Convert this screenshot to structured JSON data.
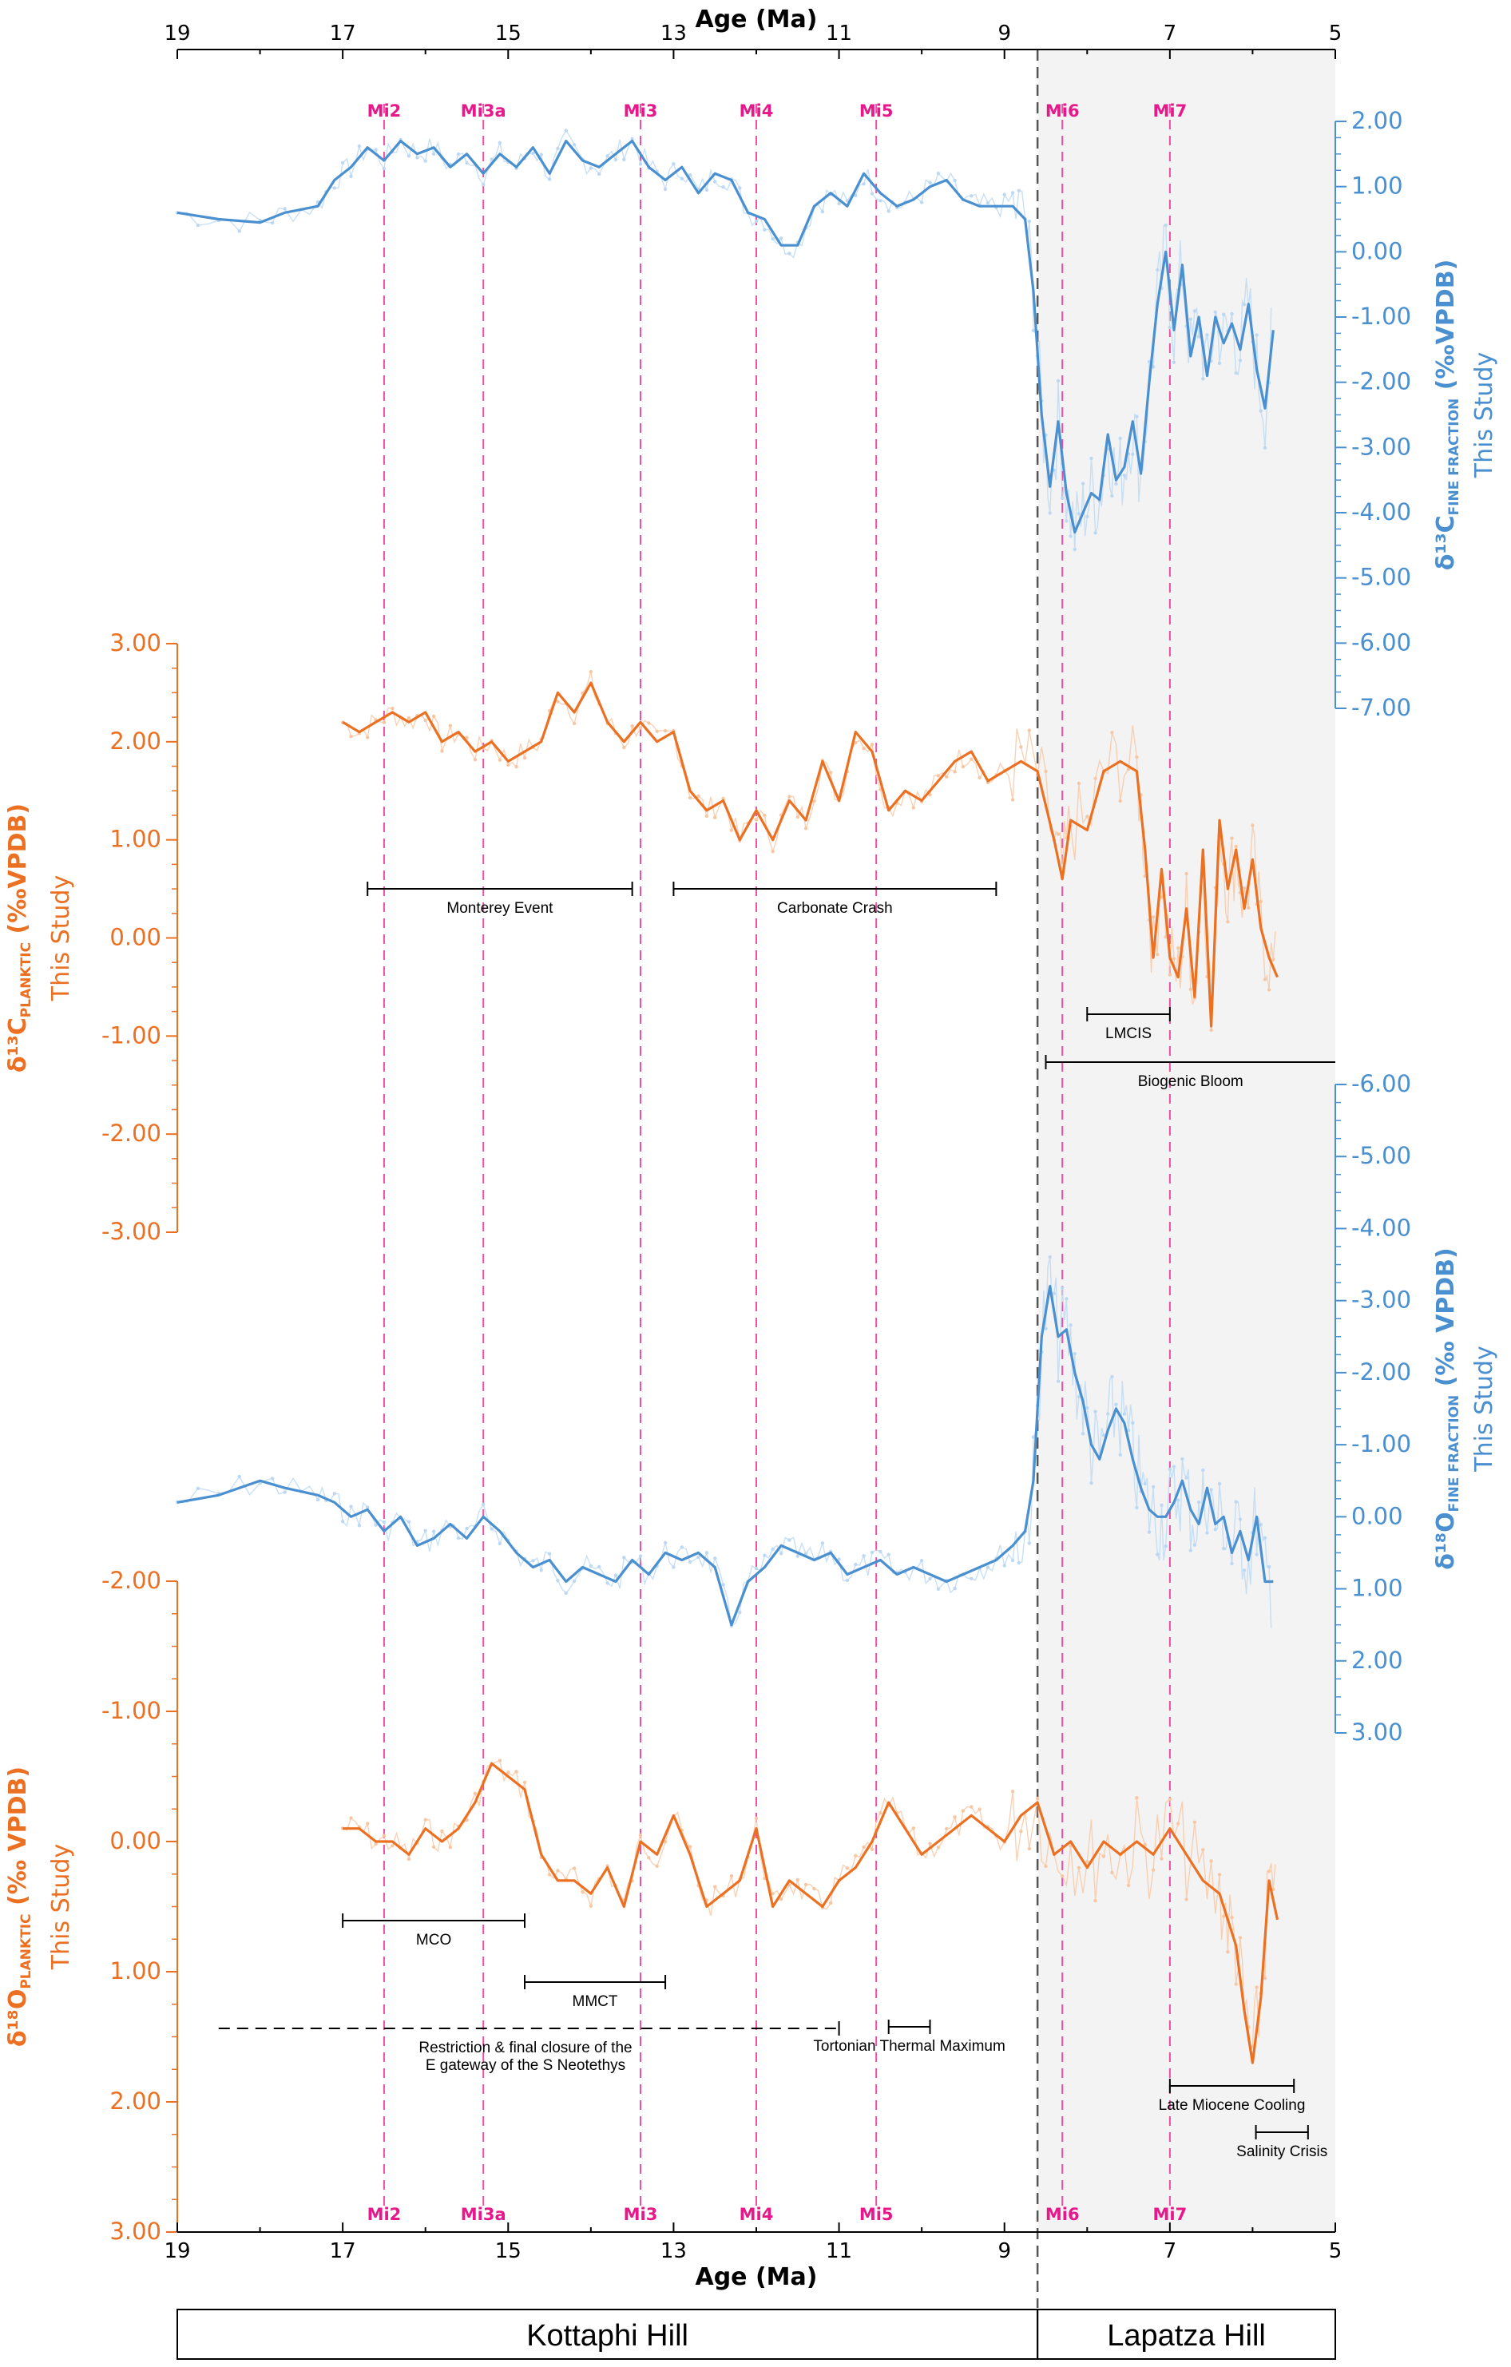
{
  "chart_data": {
    "type": "line",
    "shared_x": {
      "label": "Age (Ma)",
      "lim": [
        19,
        5
      ],
      "ticks": [
        "19",
        "17",
        "15",
        "13",
        "11",
        "9",
        "7",
        "5"
      ],
      "tick_values": [
        19,
        17,
        15,
        13,
        11,
        9,
        7,
        5
      ]
    },
    "boundary_age": 8.6,
    "shaded_region": [
      8.6,
      5
    ],
    "mi_events": [
      {
        "name": "Mi2",
        "age": 16.5
      },
      {
        "name": "Mi3a",
        "age": 15.3
      },
      {
        "name": "Mi3",
        "age": 13.4
      },
      {
        "name": "Mi4",
        "age": 12.0
      },
      {
        "name": "Mi5",
        "age": 10.55
      },
      {
        "name": "Mi6",
        "age": 8.3
      },
      {
        "name": "Mi7",
        "age": 7.0
      }
    ],
    "panels": [
      {
        "id": "d13C_fine",
        "ylabel_main": "δ¹³C",
        "ylabel_sub": "FINE FRACTION",
        "ylabel_unit": "(‰VPDB)",
        "ylabel_source": "This Study",
        "color": "#4a90d0",
        "ylim": [
          -7,
          2
        ],
        "inverted": false,
        "side": "right",
        "ticks": [
          "2.00",
          "1.00",
          "0.00",
          "-1.00",
          "-2.00",
          "-3.00",
          "-4.00",
          "-5.00",
          "-6.00",
          "-7.00"
        ],
        "tick_values": [
          2,
          1,
          0,
          -1,
          -2,
          -3,
          -4,
          -5,
          -6,
          -7
        ],
        "x": [
          19.0,
          18.5,
          18.0,
          17.7,
          17.3,
          17.1,
          16.9,
          16.7,
          16.5,
          16.3,
          16.1,
          15.9,
          15.7,
          15.5,
          15.3,
          15.1,
          14.9,
          14.7,
          14.5,
          14.3,
          14.1,
          13.9,
          13.7,
          13.5,
          13.3,
          13.1,
          12.9,
          12.7,
          12.5,
          12.3,
          12.1,
          11.9,
          11.7,
          11.5,
          11.3,
          11.1,
          10.9,
          10.7,
          10.5,
          10.3,
          10.1,
          9.9,
          9.7,
          9.5,
          9.3,
          9.1,
          8.9,
          8.75,
          8.65,
          8.55,
          8.45,
          8.35,
          8.25,
          8.15,
          8.05,
          7.95,
          7.85,
          7.75,
          7.65,
          7.55,
          7.45,
          7.35,
          7.25,
          7.15,
          7.05,
          6.95,
          6.85,
          6.75,
          6.65,
          6.55,
          6.45,
          6.35,
          6.25,
          6.15,
          6.05,
          5.95,
          5.85,
          5.75
        ],
        "values": [
          0.6,
          0.5,
          0.45,
          0.6,
          0.7,
          1.1,
          1.3,
          1.6,
          1.4,
          1.7,
          1.5,
          1.6,
          1.3,
          1.5,
          1.2,
          1.5,
          1.3,
          1.6,
          1.2,
          1.7,
          1.4,
          1.3,
          1.5,
          1.7,
          1.3,
          1.1,
          1.3,
          0.9,
          1.2,
          1.1,
          0.6,
          0.5,
          0.1,
          0.1,
          0.7,
          0.9,
          0.7,
          1.2,
          0.9,
          0.7,
          0.8,
          1.0,
          1.1,
          0.8,
          0.7,
          0.7,
          0.7,
          0.5,
          -0.6,
          -2.5,
          -3.6,
          -2.6,
          -3.7,
          -4.3,
          -4.0,
          -3.7,
          -3.8,
          -2.8,
          -3.5,
          -3.3,
          -2.6,
          -3.4,
          -2.0,
          -0.8,
          0.0,
          -1.2,
          -0.2,
          -1.6,
          -1.0,
          -1.9,
          -1.0,
          -1.4,
          -1.1,
          -1.5,
          -0.8,
          -1.8,
          -2.4,
          -1.2
        ]
      },
      {
        "id": "d13C_planktic",
        "ylabel_main": "δ¹³C",
        "ylabel_sub": "PLANKTIC",
        "ylabel_unit": "(‰VPDB)",
        "ylabel_source": "This Study",
        "color": "#ec7022",
        "ylim": [
          -3,
          3
        ],
        "inverted": false,
        "side": "left",
        "ticks": [
          "3.00",
          "2.00",
          "1.00",
          "0.00",
          "-1.00",
          "-2.00",
          "-3.00"
        ],
        "tick_values": [
          3,
          2,
          1,
          0,
          -1,
          -2,
          -3
        ],
        "x": [
          17.0,
          16.8,
          16.6,
          16.4,
          16.2,
          16.0,
          15.8,
          15.6,
          15.4,
          15.2,
          15.0,
          14.8,
          14.6,
          14.4,
          14.2,
          14.0,
          13.8,
          13.6,
          13.4,
          13.2,
          13.0,
          12.8,
          12.6,
          12.4,
          12.2,
          12.0,
          11.8,
          11.6,
          11.4,
          11.2,
          11.0,
          10.8,
          10.6,
          10.4,
          10.2,
          10.0,
          9.8,
          9.6,
          9.4,
          9.2,
          9.0,
          8.8,
          8.6,
          8.4,
          8.3,
          8.2,
          8.0,
          7.8,
          7.6,
          7.4,
          7.3,
          7.2,
          7.1,
          7.0,
          6.9,
          6.8,
          6.7,
          6.6,
          6.5,
          6.4,
          6.3,
          6.2,
          6.1,
          6.0,
          5.9,
          5.8,
          5.7
        ],
        "values": [
          2.2,
          2.1,
          2.2,
          2.3,
          2.2,
          2.3,
          2.0,
          2.1,
          1.9,
          2.0,
          1.8,
          1.9,
          2.0,
          2.5,
          2.3,
          2.6,
          2.2,
          2.0,
          2.2,
          2.0,
          2.1,
          1.5,
          1.3,
          1.4,
          1.0,
          1.3,
          1.0,
          1.4,
          1.2,
          1.8,
          1.4,
          2.1,
          1.9,
          1.3,
          1.5,
          1.4,
          1.6,
          1.8,
          1.9,
          1.6,
          1.7,
          1.8,
          1.7,
          1.0,
          0.6,
          1.2,
          1.1,
          1.7,
          1.8,
          1.7,
          0.9,
          -0.2,
          0.7,
          -0.2,
          -0.4,
          0.3,
          -0.6,
          0.9,
          -0.9,
          1.2,
          0.5,
          0.9,
          0.3,
          0.8,
          0.1,
          -0.2,
          -0.4
        ]
      },
      {
        "id": "d18O_fine",
        "ylabel_main": "δ¹⁸O",
        "ylabel_sub": "FINE FRACTION",
        "ylabel_unit": "(‰ VPDB)",
        "ylabel_source": "This Study",
        "color": "#4a90d0",
        "ylim": [
          3,
          -6
        ],
        "inverted": true,
        "side": "right",
        "ticks": [
          "-6.00",
          "-5.00",
          "-4.00",
          "-3.00",
          "-2.00",
          "-1.00",
          "0.00",
          "1.00",
          "2.00",
          "3.00"
        ],
        "tick_values": [
          -6,
          -5,
          -4,
          -3,
          -2,
          -1,
          0,
          1,
          2,
          3
        ],
        "x": [
          19.0,
          18.5,
          18.0,
          17.7,
          17.3,
          17.1,
          16.9,
          16.7,
          16.5,
          16.3,
          16.1,
          15.9,
          15.7,
          15.5,
          15.3,
          15.1,
          14.9,
          14.7,
          14.5,
          14.3,
          14.1,
          13.9,
          13.7,
          13.5,
          13.3,
          13.1,
          12.9,
          12.7,
          12.5,
          12.3,
          12.1,
          11.9,
          11.7,
          11.5,
          11.3,
          11.1,
          10.9,
          10.7,
          10.5,
          10.3,
          10.1,
          9.9,
          9.7,
          9.5,
          9.3,
          9.1,
          8.9,
          8.75,
          8.65,
          8.55,
          8.45,
          8.35,
          8.25,
          8.15,
          8.05,
          7.95,
          7.85,
          7.75,
          7.65,
          7.55,
          7.45,
          7.35,
          7.25,
          7.15,
          7.05,
          6.95,
          6.85,
          6.75,
          6.65,
          6.55,
          6.45,
          6.35,
          6.25,
          6.15,
          6.05,
          5.95,
          5.85,
          5.75
        ],
        "values": [
          -0.2,
          -0.3,
          -0.5,
          -0.4,
          -0.3,
          -0.2,
          0.0,
          -0.1,
          0.2,
          0.0,
          0.4,
          0.3,
          0.1,
          0.3,
          0.0,
          0.2,
          0.5,
          0.7,
          0.6,
          0.9,
          0.7,
          0.8,
          0.9,
          0.6,
          0.8,
          0.5,
          0.6,
          0.5,
          0.7,
          1.5,
          0.9,
          0.7,
          0.4,
          0.5,
          0.6,
          0.5,
          0.8,
          0.7,
          0.6,
          0.8,
          0.7,
          0.8,
          0.9,
          0.8,
          0.7,
          0.6,
          0.4,
          0.2,
          -0.5,
          -2.5,
          -3.2,
          -2.5,
          -2.6,
          -2.0,
          -1.6,
          -1.0,
          -0.8,
          -1.2,
          -1.5,
          -1.3,
          -0.8,
          -0.4,
          -0.1,
          0.0,
          0.0,
          -0.2,
          -0.5,
          -0.1,
          0.1,
          -0.4,
          0.1,
          0.0,
          0.5,
          0.2,
          0.6,
          0.0,
          0.9,
          0.9
        ]
      },
      {
        "id": "d18O_planktic",
        "ylabel_main": "δ¹⁸O",
        "ylabel_sub": "PLANKTIC",
        "ylabel_unit": "(‰ VPDB)",
        "ylabel_source": "This Study",
        "color": "#ec7022",
        "ylim": [
          3,
          -2
        ],
        "inverted": true,
        "side": "left",
        "ticks": [
          "-2.00",
          "-1.00",
          "0.00",
          "1.00",
          "2.00",
          "3.00"
        ],
        "tick_values": [
          -2,
          -1,
          0,
          1,
          2,
          3
        ],
        "x": [
          17.0,
          16.8,
          16.6,
          16.4,
          16.2,
          16.0,
          15.8,
          15.6,
          15.4,
          15.2,
          15.0,
          14.8,
          14.6,
          14.4,
          14.2,
          14.0,
          13.8,
          13.6,
          13.4,
          13.2,
          13.0,
          12.8,
          12.6,
          12.4,
          12.2,
          12.0,
          11.8,
          11.6,
          11.4,
          11.2,
          11.0,
          10.8,
          10.6,
          10.4,
          10.2,
          10.0,
          9.8,
          9.6,
          9.4,
          9.2,
          9.0,
          8.8,
          8.6,
          8.4,
          8.2,
          8.0,
          7.8,
          7.6,
          7.4,
          7.2,
          7.0,
          6.8,
          6.6,
          6.4,
          6.3,
          6.2,
          6.1,
          6.0,
          5.9,
          5.8,
          5.7
        ],
        "values": [
          -0.1,
          -0.1,
          0.0,
          0.0,
          0.1,
          -0.1,
          0.0,
          -0.1,
          -0.3,
          -0.6,
          -0.5,
          -0.4,
          0.1,
          0.3,
          0.3,
          0.4,
          0.2,
          0.5,
          0.0,
          0.1,
          -0.2,
          0.1,
          0.5,
          0.4,
          0.3,
          -0.1,
          0.5,
          0.3,
          0.4,
          0.5,
          0.3,
          0.2,
          0.0,
          -0.3,
          -0.1,
          0.1,
          0.0,
          -0.1,
          -0.2,
          -0.1,
          0.0,
          -0.2,
          -0.3,
          0.1,
          0.0,
          0.2,
          0.0,
          0.1,
          0.0,
          0.1,
          -0.1,
          0.1,
          0.3,
          0.4,
          0.6,
          0.8,
          1.3,
          1.7,
          1.2,
          0.3,
          0.6
        ]
      }
    ],
    "event_bars": [
      {
        "label": "Monterey Event",
        "from": 16.7,
        "to": 13.5,
        "panel": "d13C_planktic",
        "dashed": false
      },
      {
        "label": "Carbonate Crash",
        "from": 13.0,
        "to": 9.1,
        "panel": "d13C_planktic",
        "dashed": false
      },
      {
        "label": "LMCIS",
        "from": 8.0,
        "to": 7.0,
        "panel": "d13C_planktic",
        "dashed": false
      },
      {
        "label": "Biogenic Bloom",
        "from": 8.5,
        "to": 5.0,
        "panel": "d13C_planktic",
        "dashed": false
      },
      {
        "label": "MCO",
        "from": 17.0,
        "to": 14.8,
        "panel": "d18O_planktic",
        "dashed": false
      },
      {
        "label": "MMCT",
        "from": 14.8,
        "to": 13.1,
        "panel": "d18O_planktic",
        "dashed": false
      },
      {
        "label": "Restriction & final closure of the\nE gateway of the S Neotethys",
        "from": 18.5,
        "to": 11.0,
        "panel": "d18O_planktic",
        "dashed": true
      },
      {
        "label": "Tortonian Thermal Maximum",
        "from": 10.4,
        "to": 9.9,
        "panel": "d18O_planktic",
        "dashed": false
      },
      {
        "label": "Late Miocene Cooling",
        "from": 7.0,
        "to": 5.5,
        "panel": "d18O_planktic",
        "dashed": false
      },
      {
        "label": "Salinity Crisis",
        "from": 5.96,
        "to": 5.33,
        "panel": "d18O_planktic",
        "dashed": false
      }
    ],
    "locations": [
      {
        "label": "Kottaphi Hill",
        "from": 19,
        "to": 8.6
      },
      {
        "label": "Lapatza Hill",
        "from": 8.6,
        "to": 5
      }
    ]
  }
}
